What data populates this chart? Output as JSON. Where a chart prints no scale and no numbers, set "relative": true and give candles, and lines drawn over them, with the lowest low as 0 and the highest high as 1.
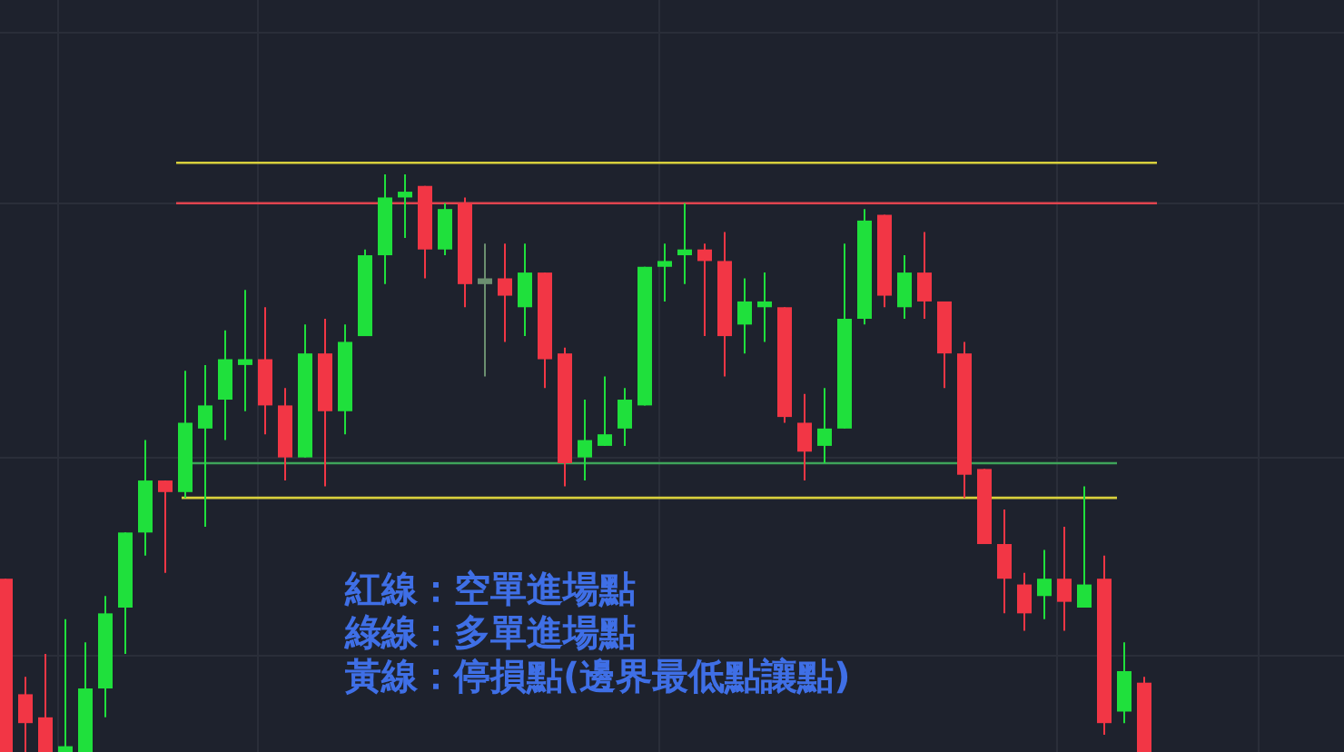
{
  "chart_data": {
    "type": "candlestick",
    "relative": true,
    "categories": [
      null,
      null,
      null,
      null,
      null,
      null,
      null,
      null,
      null,
      null,
      null,
      null,
      null,
      null,
      null,
      null,
      null,
      null,
      null,
      null,
      null,
      null,
      null,
      null,
      null,
      null,
      null,
      null,
      null,
      null,
      null,
      null,
      null,
      null,
      null,
      null,
      null,
      null,
      null,
      null,
      null,
      null,
      null,
      null,
      null,
      null,
      null,
      null,
      null,
      null,
      null,
      null,
      null,
      null,
      null,
      null,
      null,
      null
    ],
    "ohlc": [
      [
        0.3,
        0.3,
        0,
        0
      ],
      [
        0.1,
        0.13,
        0,
        0.05
      ],
      [
        0.06,
        0.17,
        0,
        0
      ],
      [
        0,
        0.23,
        0,
        0.01
      ],
      [
        0,
        0.19,
        0,
        0.11
      ],
      [
        0.11,
        0.27,
        0.06,
        0.24
      ],
      [
        0.25,
        0.38,
        0.17,
        0.38
      ],
      [
        0.38,
        0.54,
        0.34,
        0.47
      ],
      [
        0.47,
        0.47,
        0.31,
        0.45
      ],
      [
        0.45,
        0.66,
        0.44,
        0.57
      ],
      [
        0.56,
        0.67,
        0.39,
        0.6
      ],
      [
        0.61,
        0.73,
        0.54,
        0.68
      ],
      [
        0.67,
        0.8,
        0.59,
        0.68
      ],
      [
        0.68,
        0.77,
        0.55,
        0.6
      ],
      [
        0.6,
        0.63,
        0.47,
        0.51
      ],
      [
        0.51,
        0.74,
        0.51,
        0.69
      ],
      [
        0.69,
        0.75,
        0.46,
        0.59
      ],
      [
        0.59,
        0.74,
        0.55,
        0.71
      ],
      [
        0.72,
        0.87,
        0.72,
        0.86
      ],
      [
        0.86,
        1,
        0.81,
        0.96
      ],
      [
        0.96,
        1,
        0.89,
        0.97
      ],
      [
        0.98,
        0.98,
        0.82,
        0.87
      ],
      [
        0.87,
        0.95,
        0.86,
        0.94
      ],
      [
        0.95,
        0.96,
        0.77,
        0.81
      ],
      [
        0.81,
        0.88,
        0.65,
        0.82
      ],
      [
        0.82,
        0.88,
        0.71,
        0.79
      ],
      [
        0.77,
        0.88,
        0.72,
        0.83
      ],
      [
        0.83,
        0.83,
        0.63,
        0.68
      ],
      [
        0.69,
        0.7,
        0.46,
        0.5
      ],
      [
        0.51,
        0.61,
        0.47,
        0.54
      ],
      [
        0.53,
        0.65,
        0.53,
        0.55
      ],
      [
        0.56,
        0.63,
        0.53,
        0.61
      ],
      [
        0.6,
        0.84,
        0.6,
        0.84
      ],
      [
        0.84,
        0.88,
        0.78,
        0.85
      ],
      [
        0.86,
        0.95,
        0.81,
        0.87
      ],
      [
        0.87,
        0.88,
        0.72,
        0.85
      ],
      [
        0.85,
        0.9,
        0.65,
        0.72
      ],
      [
        0.74,
        0.82,
        0.69,
        0.78
      ],
      [
        0.77,
        0.83,
        0.71,
        0.78
      ],
      [
        0.77,
        0.77,
        0.57,
        0.58
      ],
      [
        0.57,
        0.62,
        0.47,
        0.52
      ],
      [
        0.53,
        0.63,
        0.5,
        0.56
      ],
      [
        0.56,
        0.88,
        0.56,
        0.75
      ],
      [
        0.75,
        0.94,
        0.74,
        0.92
      ],
      [
        0.93,
        0.93,
        0.77,
        0.79
      ],
      [
        0.77,
        0.86,
        0.75,
        0.83
      ],
      [
        0.83,
        0.9,
        0.75,
        0.78
      ],
      [
        0.78,
        0.78,
        0.63,
        0.69
      ],
      [
        0.69,
        0.71,
        0.44,
        0.48
      ],
      [
        0.49,
        0.49,
        0.36,
        0.36
      ],
      [
        0.36,
        0.42,
        0.24,
        0.3
      ],
      [
        0.29,
        0.31,
        0.21,
        0.24
      ],
      [
        0.27,
        0.35,
        0.23,
        0.3
      ],
      [
        0.3,
        0.39,
        0.21,
        0.26
      ],
      [
        0.25,
        0.46,
        0.25,
        0.29
      ],
      [
        0.3,
        0.34,
        0.03,
        0.05
      ],
      [
        0.07,
        0.19,
        0.05,
        0.14
      ],
      [
        0.12,
        0.13,
        0,
        0
      ]
    ],
    "colors": [
      "#f23645",
      "#f23645",
      "#f23645",
      "#1fe03c",
      "#1fe03c",
      "#1fe03c",
      "#1fe03c",
      "#1fe03c",
      "#f23645",
      "#1fe03c",
      "#1fe03c",
      "#1fe03c",
      "#1fe03c",
      "#f23645",
      "#f23645",
      "#1fe03c",
      "#f23645",
      "#1fe03c",
      "#1fe03c",
      "#1fe03c",
      "#1fe03c",
      "#f23645",
      "#1fe03c",
      "#f23645",
      "#6b8f70",
      "#f23645",
      "#1fe03c",
      "#f23645",
      "#f23645",
      "#1fe03c",
      "#1fe03c",
      "#1fe03c",
      "#1fe03c",
      "#1fe03c",
      "#1fe03c",
      "#f23645",
      "#f23645",
      "#1fe03c",
      "#1fe03c",
      "#f23645",
      "#f23645",
      "#1fe03c",
      "#1fe03c",
      "#1fe03c",
      "#f23645",
      "#1fe03c",
      "#f23645",
      "#f23645",
      "#f23645",
      "#f23645",
      "#f23645",
      "#f23645",
      "#1fe03c",
      "#f23645",
      "#1fe03c",
      "#f23645",
      "#1fe03c",
      "#f23645"
    ],
    "ref_lines": [
      {
        "axis": "y",
        "value": 1.02,
        "color": "#d8cf3c"
      },
      {
        "axis": "y",
        "value": 0.95,
        "color": "#e0444f"
      },
      {
        "axis": "y",
        "value": 0.5,
        "color": "#3fa45a"
      },
      {
        "axis": "y",
        "value": 0.44,
        "color": "#d8cf3c"
      }
    ],
    "annotations": [
      "紅線：空單進場點",
      "綠線：多單進場點",
      "黃線：停損點(邊界最低點讓點)"
    ]
  }
}
